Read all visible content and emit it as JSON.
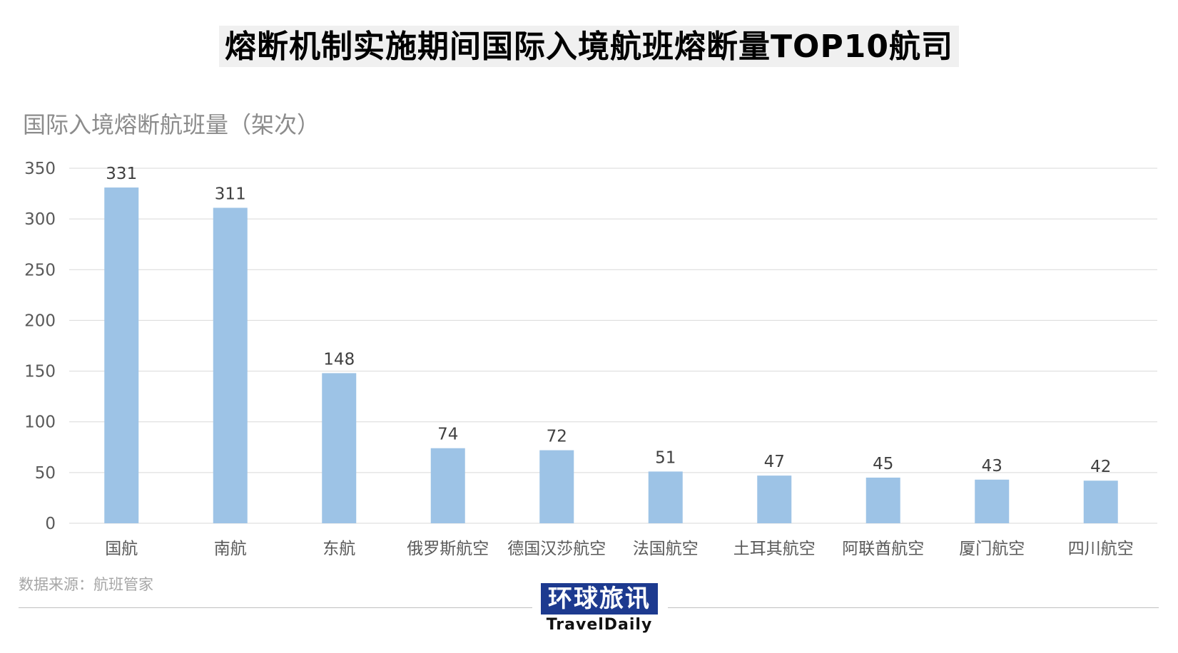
{
  "chart_data": {
    "type": "bar",
    "title": "熔断机制实施期间国际入境航班熔断量TOP10航司",
    "ylabel": "国际入境熔断航班量（架次）",
    "xlabel": "",
    "categories": [
      "国航",
      "南航",
      "东航",
      "俄罗斯航空",
      "德国汉莎航空",
      "法国航空",
      "土耳其航空",
      "阿联酋航空",
      "厦门航空",
      "四川航空"
    ],
    "values": [
      331,
      311,
      148,
      74,
      72,
      51,
      47,
      45,
      43,
      42
    ],
    "ylim": [
      0,
      350
    ],
    "yticks": [
      0,
      50,
      100,
      150,
      200,
      250,
      300,
      350
    ],
    "grid": true,
    "legend": "none",
    "bar_color": "#9dc3e6"
  },
  "source": "数据来源：航班管家",
  "logo": {
    "cn": "环球旅讯",
    "en": "TravelDaily"
  }
}
